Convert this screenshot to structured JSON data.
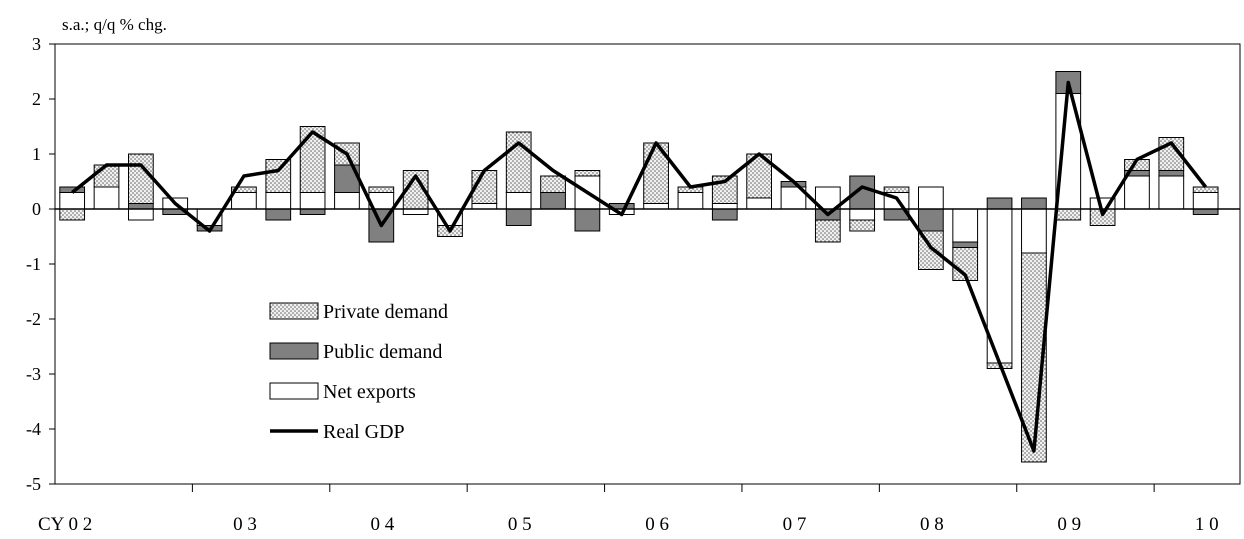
{
  "chart_data": {
    "type": "bar",
    "subtype": "stacked-bar-with-line",
    "unit_label": "s.a.; q/q % chg.",
    "ylim": [
      -5,
      3
    ],
    "yticks": [
      3,
      2,
      1,
      0,
      -1,
      -2,
      -3,
      -4,
      -5
    ],
    "grid": false,
    "legend_position": "lower-left",
    "year_labels": [
      "CY 0 2",
      "0 3",
      "0 4",
      "0 5",
      "0 6",
      "0 7",
      "0 8",
      "0 9",
      "1 0"
    ],
    "quarters": [
      "2002Q1",
      "2002Q2",
      "2002Q3",
      "2002Q4",
      "2003Q1",
      "2003Q2",
      "2003Q3",
      "2003Q4",
      "2004Q1",
      "2004Q2",
      "2004Q3",
      "2004Q4",
      "2005Q1",
      "2005Q2",
      "2005Q3",
      "2005Q4",
      "2006Q1",
      "2006Q2",
      "2006Q3",
      "2006Q4",
      "2007Q1",
      "2007Q2",
      "2007Q3",
      "2007Q4",
      "2008Q1",
      "2008Q2",
      "2008Q3",
      "2008Q4",
      "2009Q1",
      "2009Q2",
      "2009Q3",
      "2009Q4",
      "2010Q1",
      "2010Q2"
    ],
    "series": [
      {
        "name": "Net exports",
        "kind": "bar",
        "color": "#ffffff",
        "values": [
          0.3,
          0.4,
          -0.2,
          0.2,
          -0.3,
          0.3,
          0.3,
          0.3,
          0.3,
          0.3,
          -0.1,
          -0.3,
          0.1,
          0.3,
          0.0,
          0.6,
          -0.1,
          0.1,
          0.3,
          0.1,
          0.2,
          0.4,
          0.4,
          -0.2,
          0.3,
          0.4,
          -0.6,
          -2.8,
          -0.8,
          2.1,
          0.2,
          0.6,
          0.6,
          0.3
        ]
      },
      {
        "name": "Public demand",
        "kind": "bar",
        "color": "#808080",
        "values": [
          0.1,
          0.0,
          0.1,
          -0.1,
          -0.1,
          0.0,
          -0.2,
          -0.1,
          0.5,
          -0.6,
          0.0,
          0.0,
          0.0,
          -0.3,
          0.3,
          -0.4,
          0.1,
          0.0,
          0.0,
          -0.2,
          0.0,
          0.1,
          -0.2,
          0.6,
          -0.2,
          -0.4,
          -0.1,
          0.2,
          0.2,
          0.4,
          0.0,
          0.1,
          0.1,
          -0.1
        ]
      },
      {
        "name": "Private demand",
        "kind": "bar",
        "color": "#d9d9d9",
        "values": [
          -0.2,
          0.4,
          0.9,
          0.0,
          0.0,
          0.1,
          0.6,
          1.2,
          0.4,
          0.1,
          0.7,
          -0.2,
          0.6,
          1.1,
          0.3,
          0.1,
          0.0,
          1.1,
          0.1,
          0.5,
          0.8,
          0.0,
          -0.4,
          -0.2,
          0.1,
          -0.7,
          -0.6,
          -0.1,
          -3.8,
          -0.2,
          -0.3,
          0.2,
          0.6,
          0.1
        ]
      },
      {
        "name": "Real GDP",
        "kind": "line",
        "color": "#000000",
        "values": [
          0.3,
          0.8,
          0.8,
          0.1,
          -0.4,
          0.6,
          0.7,
          1.4,
          1.0,
          -0.3,
          0.6,
          -0.4,
          0.7,
          1.2,
          0.7,
          0.3,
          -0.1,
          1.2,
          0.4,
          0.5,
          1.0,
          0.5,
          -0.1,
          0.4,
          0.2,
          -0.7,
          -1.2,
          -2.8,
          -4.4,
          2.3,
          -0.1,
          0.9,
          1.2,
          0.4
        ]
      }
    ]
  }
}
